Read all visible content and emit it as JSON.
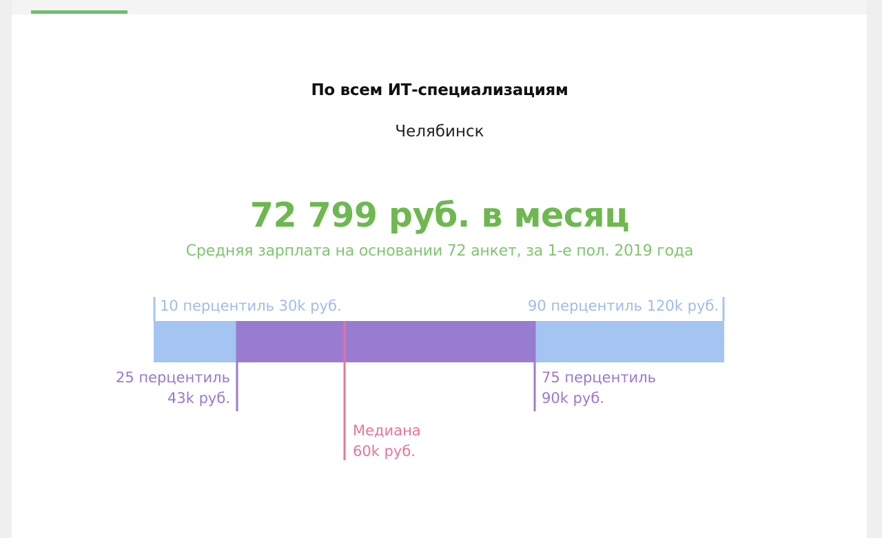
{
  "colors": {
    "accent_green": "#6db84f",
    "note_green": "#7ec66d",
    "outer_band": "#a4c4f2",
    "outer_label": "#9fbceb",
    "inner_band": "#987ccf",
    "inner_label": "#9a78d0",
    "median": "#e8749b"
  },
  "header": {
    "title": "По всем ИТ-специализациям",
    "city": "Челябинск"
  },
  "summary": {
    "salary": "72 799 руб. в месяц",
    "note": "Средняя зарплата на основании 72 анкет, за 1-е пол. 2019 года"
  },
  "chart_data": {
    "type": "range-bar",
    "unit": "k руб.",
    "values": {
      "p10": 30,
      "p25": 43,
      "median": 60,
      "p75": 90,
      "p90": 120
    },
    "labels": {
      "p10": "10 перцентиль 30k руб.",
      "p90": "90 перцентиль 120k руб.",
      "p25_line1": "25 перцентиль",
      "p25_line2": "43k руб.",
      "p75_line1": "75 перцентиль",
      "p75_line2": "90k руб.",
      "median_line1": "Медиана",
      "median_line2": "60k руб."
    }
  }
}
